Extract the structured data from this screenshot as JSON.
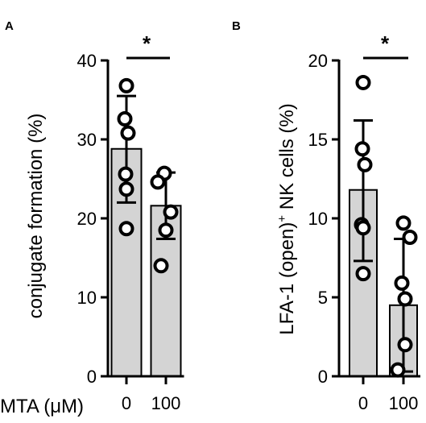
{
  "figure": {
    "xaxis_prefix": "MTA (μM)"
  },
  "chart_data": [
    {
      "type": "bar",
      "panel_label": "A",
      "ylabel": "conjugate formation (%)",
      "ylim": [
        0,
        40
      ],
      "yticks": [
        0,
        10,
        20,
        30,
        40
      ],
      "categories": [
        "0",
        "100"
      ],
      "values": [
        28.8,
        21.6
      ],
      "error": [
        [
          22.0,
          35.5
        ],
        [
          17.4,
          25.8
        ]
      ],
      "points": [
        [
          36.8,
          32.6,
          30.8,
          25.6,
          23.7,
          18.7
        ],
        [
          25.7,
          24.6,
          20.8,
          18.5,
          14.0
        ]
      ],
      "significance": "*",
      "grid": false
    },
    {
      "type": "bar",
      "panel_label": "B",
      "ylabel": "LFA-1 (open)+ NK cells (%)",
      "ylabel_parts": [
        "LFA-1 (open)",
        "+",
        " NK cells (%)"
      ],
      "ylim": [
        0,
        20
      ],
      "yticks": [
        0,
        5,
        10,
        15,
        20
      ],
      "categories": [
        "0",
        "100"
      ],
      "values": [
        11.8,
        4.5
      ],
      "error": [
        [
          7.3,
          16.2
        ],
        [
          0.3,
          8.7
        ]
      ],
      "points": [
        [
          18.6,
          14.4,
          13.4,
          9.6,
          9.4,
          6.5
        ],
        [
          9.7,
          8.8,
          5.9,
          4.9,
          2.0,
          0.4
        ]
      ],
      "significance": "*",
      "grid": false
    }
  ]
}
